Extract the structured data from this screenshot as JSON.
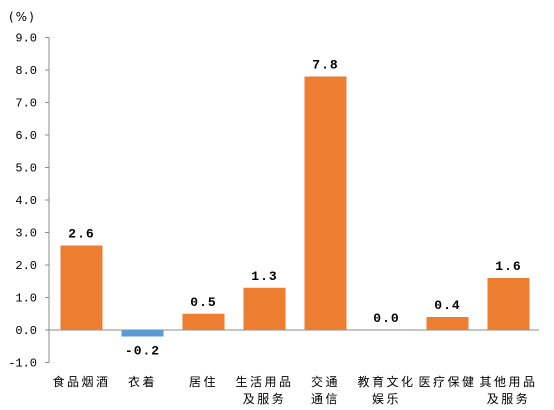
{
  "chart_data": {
    "type": "bar",
    "categories": [
      "食品烟酒",
      "衣着",
      "居住",
      "生活用品\n及服务",
      "交通\n通信",
      "教育文化\n娱乐",
      "医疗保健",
      "其他用品\n及服务"
    ],
    "values": [
      2.6,
      -0.2,
      0.5,
      1.3,
      7.8,
      0.0,
      0.4,
      1.6
    ],
    "ylabel": "(%)",
    "ylim": [
      -1.0,
      9.0
    ],
    "ytick_step": 1.0,
    "grid": false,
    "legend": "none"
  },
  "colors": {
    "positive": "#ED7D31",
    "negative": "#5B9BD5",
    "axis": "#8C8C8C",
    "text": "#000000"
  }
}
